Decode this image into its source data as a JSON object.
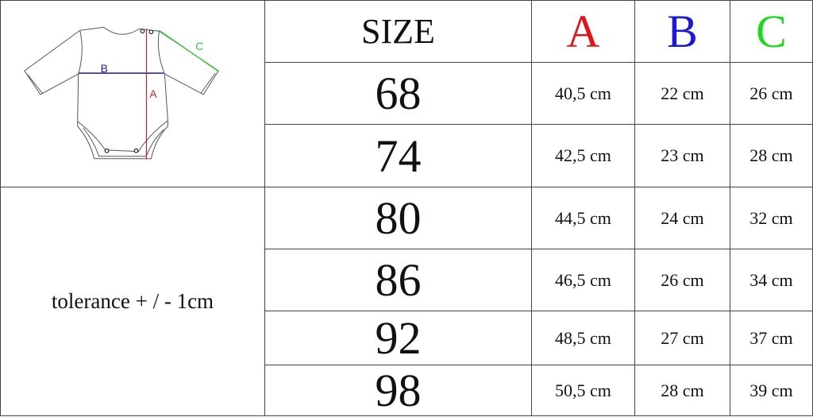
{
  "header": {
    "size": "SIZE",
    "columns": [
      {
        "label": "A",
        "color": "#e0141b"
      },
      {
        "label": "B",
        "color": "#1a1ad6"
      },
      {
        "label": "C",
        "color": "#1fd81f"
      }
    ]
  },
  "rows": [
    {
      "size": "68",
      "a": "40,5 cm",
      "b": "22 cm",
      "c": "26 cm"
    },
    {
      "size": "74",
      "a": "42,5 cm",
      "b": "23 cm",
      "c": "28 cm"
    },
    {
      "size": "80",
      "a": "44,5 cm",
      "b": "24 cm",
      "c": "32 cm"
    },
    {
      "size": "86",
      "a": "46,5 cm",
      "b": "26 cm",
      "c": "34 cm"
    },
    {
      "size": "92",
      "a": "48,5 cm",
      "b": "27 cm",
      "c": "37 cm"
    },
    {
      "size": "98",
      "a": "50,5 cm",
      "b": "28 cm",
      "c": "39 cm"
    }
  ],
  "tolerance": "tolerance + / - 1cm",
  "diagram": {
    "label_a": "A",
    "label_b": "B",
    "label_c": "C",
    "colors": {
      "a": "#c0262b",
      "b": "#1b1b9e",
      "c": "#3cc43c"
    }
  }
}
